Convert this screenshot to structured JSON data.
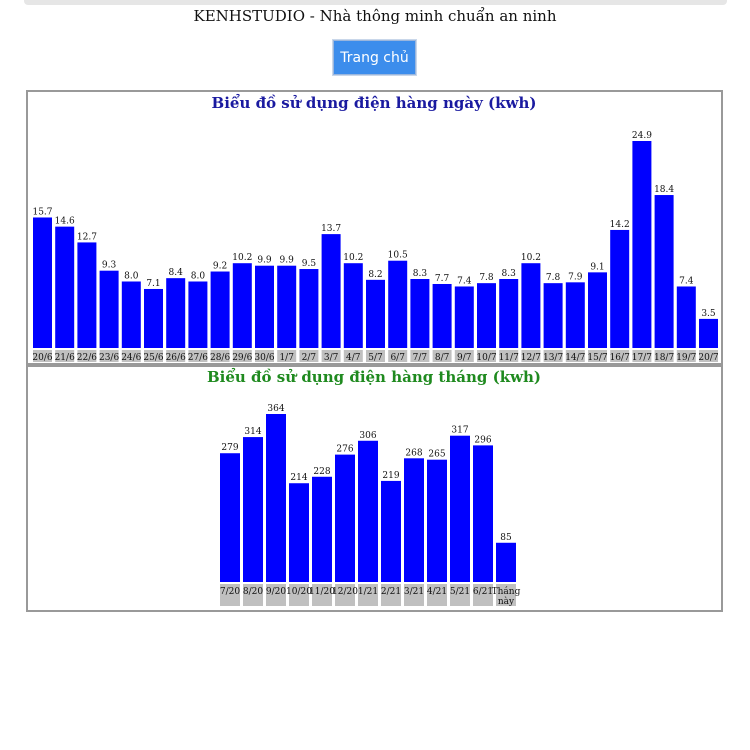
{
  "page": {
    "title": "KENHSTUDIO - Nhà thông minh chuẩn an ninh",
    "home_button": "Trang chủ"
  },
  "colors": {
    "bar": "#0000ff",
    "label_bg": "#c0c0c0",
    "daily_title": "#1a1aa0",
    "monthly_title": "#1f8a1f"
  },
  "chart_data": [
    {
      "type": "bar",
      "title": "Biểu đồ sử dụng điện hàng ngày (kwh)",
      "categories": [
        "20/6",
        "21/6",
        "22/6",
        "23/6",
        "24/6",
        "25/6",
        "26/6",
        "27/6",
        "28/6",
        "29/6",
        "30/6",
        "1/7",
        "2/7",
        "3/7",
        "4/7",
        "5/7",
        "6/7",
        "7/7",
        "8/7",
        "9/7",
        "10/7",
        "11/7",
        "12/7",
        "13/7",
        "14/7",
        "15/7",
        "16/7",
        "17/7",
        "18/7",
        "19/7",
        "20/7"
      ],
      "values": [
        15.7,
        14.6,
        12.7,
        9.3,
        8.0,
        7.1,
        8.4,
        8.0,
        9.2,
        10.2,
        9.9,
        9.9,
        9.5,
        13.7,
        10.2,
        8.2,
        10.5,
        8.3,
        7.7,
        7.4,
        7.8,
        8.3,
        10.2,
        7.8,
        7.9,
        9.1,
        14.2,
        24.9,
        18.4,
        7.4,
        3.5
      ],
      "value_labels": [
        "15.7",
        "14.6",
        "12.7",
        "9.3",
        "8.0",
        "7.1",
        "8.4",
        "8.0",
        "9.2",
        "10.2",
        "9.9",
        "9.9",
        "9.5",
        "13.7",
        "10.2",
        "8.2",
        "10.5",
        "8.3",
        "7.7",
        "7.4",
        "7.8",
        "8.3",
        "10.2",
        "7.8",
        "7.9",
        "9.1",
        "14.2",
        "24.9",
        "18.4",
        "7.4",
        "3.5"
      ],
      "ylim": [
        0,
        24.9
      ],
      "grid": false,
      "legend": "none"
    },
    {
      "type": "bar",
      "title": "Biểu đồ sử dụng điện hàng tháng (kwh)",
      "categories": [
        "7/20",
        "8/20",
        "9/20",
        "10/20",
        "11/20",
        "12/20",
        "1/21",
        "2/21",
        "3/21",
        "4/21",
        "5/21",
        "6/21",
        "Tháng này"
      ],
      "values": [
        279,
        314,
        364,
        214,
        228,
        276,
        306,
        219,
        268,
        265,
        317,
        296,
        85
      ],
      "value_labels": [
        "279",
        "314",
        "364",
        "214",
        "228",
        "276",
        "306",
        "219",
        "268",
        "265",
        "317",
        "296",
        "85"
      ],
      "ylim": [
        0,
        364
      ],
      "grid": false,
      "legend": "none"
    }
  ]
}
